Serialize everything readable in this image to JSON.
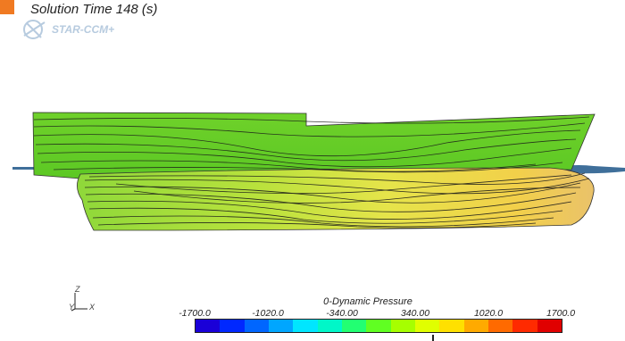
{
  "header": {
    "solution_time_label": "Solution Time 148 (s)",
    "logo_text": "STAR-CCM+"
  },
  "scene": {
    "hull_color": "#6fd12a",
    "water_color": "#3f6f9a"
  },
  "axes": {
    "y": "Z",
    "x": "X",
    "origin": "Y"
  },
  "legend": {
    "title": "0-Dynamic Pressure",
    "ticks": [
      "-1700.0",
      "-1020.0",
      "-340.00",
      "340.00",
      "1020.0",
      "1700.0"
    ],
    "colors": [
      "#1a00d8",
      "#0028ff",
      "#0066ff",
      "#00a6ff",
      "#00e6ff",
      "#00f7c8",
      "#22ff72",
      "#60ff22",
      "#a6ff00",
      "#e0ff00",
      "#ffe000",
      "#ffaa00",
      "#ff6a00",
      "#ff2a00",
      "#e00000"
    ]
  }
}
